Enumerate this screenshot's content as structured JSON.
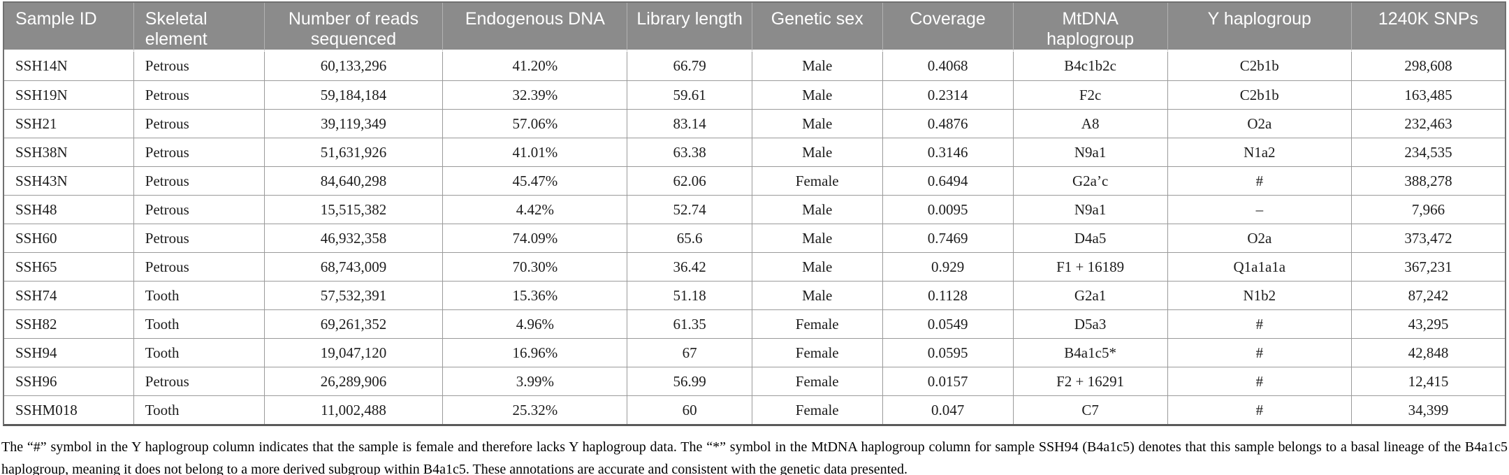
{
  "colors": {
    "header_background": "#8b8b8b",
    "header_text": "#ffffff",
    "grid_line": "#9a9a9a",
    "body_text": "#1c1c1c"
  },
  "table": {
    "columns": [
      {
        "key": "sample-id",
        "label": "Sample ID",
        "align": "left"
      },
      {
        "key": "skeletal-element",
        "label": "Skeletal element",
        "align": "left"
      },
      {
        "key": "reads-sequenced",
        "label": "Number of reads sequenced",
        "align": "center"
      },
      {
        "key": "endogenous-dna",
        "label": "Endogenous DNA",
        "align": "center"
      },
      {
        "key": "library-length",
        "label": "Library length",
        "align": "center"
      },
      {
        "key": "genetic-sex",
        "label": "Genetic sex",
        "align": "center"
      },
      {
        "key": "coverage",
        "label": "Coverage",
        "align": "center"
      },
      {
        "key": "mtdna-haplogroup",
        "label": "MtDNA haplogroup",
        "align": "center"
      },
      {
        "key": "y-haplogroup",
        "label": "Y haplogroup",
        "align": "center"
      },
      {
        "key": "snps-1240k",
        "label": "1240K SNPs",
        "align": "center"
      }
    ],
    "rows": [
      [
        "SSH14N",
        "Petrous",
        "60,133,296",
        "41.20%",
        "66.79",
        "Male",
        "0.4068",
        "B4c1b2c",
        "C2b1b",
        "298,608"
      ],
      [
        "SSH19N",
        "Petrous",
        "59,184,184",
        "32.39%",
        "59.61",
        "Male",
        "0.2314",
        "F2c",
        "C2b1b",
        "163,485"
      ],
      [
        "SSH21",
        "Petrous",
        "39,119,349",
        "57.06%",
        "83.14",
        "Male",
        "0.4876",
        "A8",
        "O2a",
        "232,463"
      ],
      [
        "SSH38N",
        "Petrous",
        "51,631,926",
        "41.01%",
        "63.38",
        "Male",
        "0.3146",
        "N9a1",
        "N1a2",
        "234,535"
      ],
      [
        "SSH43N",
        "Petrous",
        "84,640,298",
        "45.47%",
        "62.06",
        "Female",
        "0.6494",
        "G2a’c",
        "#",
        "388,278"
      ],
      [
        "SSH48",
        "Petrous",
        "15,515,382",
        "4.42%",
        "52.74",
        "Male",
        "0.0095",
        "N9a1",
        "–",
        "7,966"
      ],
      [
        "SSH60",
        "Petrous",
        "46,932,358",
        "74.09%",
        "65.6",
        "Male",
        "0.7469",
        "D4a5",
        "O2a",
        "373,472"
      ],
      [
        "SSH65",
        "Petrous",
        "68,743,009",
        "70.30%",
        "36.42",
        "Male",
        "0.929",
        "F1 + 16189",
        "Q1a1a1a",
        "367,231"
      ],
      [
        "SSH74",
        "Tooth",
        "57,532,391",
        "15.36%",
        "51.18",
        "Male",
        "0.1128",
        "G2a1",
        "N1b2",
        "87,242"
      ],
      [
        "SSH82",
        "Tooth",
        "69,261,352",
        "4.96%",
        "61.35",
        "Female",
        "0.0549",
        "D5a3",
        "#",
        "43,295"
      ],
      [
        "SSH94",
        "Tooth",
        "19,047,120",
        "16.96%",
        "67",
        "Female",
        "0.0595",
        "B4a1c5*",
        "#",
        "42,848"
      ],
      [
        "SSH96",
        "Petrous",
        "26,289,906",
        "3.99%",
        "56.99",
        "Female",
        "0.0157",
        "F2 + 16291",
        "#",
        "12,415"
      ],
      [
        "SSHM018",
        "Tooth",
        "11,002,488",
        "25.32%",
        "60",
        "Female",
        "0.047",
        "C7",
        "#",
        "34,399"
      ]
    ]
  },
  "footnote": "The “#” symbol in the Y haplogroup column indicates that the sample is female and therefore lacks Y haplogroup data. The “*” symbol in the MtDNA haplogroup column for sample SSH94 (B4a1c5) denotes that this sample belongs to a basal lineage of the B4a1c5 haplogroup, meaning it does not belong to a more derived subgroup within B4a1c5. These annotations are accurate and consistent with the genetic data presented."
}
